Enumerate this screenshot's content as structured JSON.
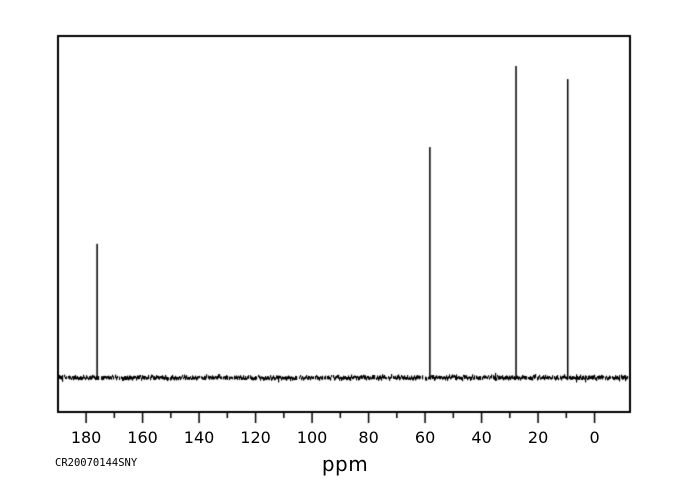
{
  "chart_data": {
    "type": "line",
    "subtype": "13C-NMR-spectrum",
    "title": "",
    "xlabel": "ppm",
    "ylabel": "",
    "xlim": [
      190.3,
      -12.9
    ],
    "x_axis_inverted": true,
    "grid": false,
    "legend": false,
    "x_major_ticks": [
      180,
      160,
      140,
      120,
      100,
      80,
      60,
      40,
      20,
      0
    ],
    "x_minor_ticks": [
      170,
      150,
      130,
      110,
      90,
      70,
      50,
      30,
      10
    ],
    "peaks": [
      {
        "ppm": 176.1,
        "rel_intensity": 0.43
      },
      {
        "ppm": 58.3,
        "rel_intensity": 0.74
      },
      {
        "ppm": 27.8,
        "rel_intensity": 1.0
      },
      {
        "ppm": 9.5,
        "rel_intensity": 0.958
      }
    ],
    "baseline_rel_intensity": 0.0,
    "noise_band_thickness_px": 3,
    "spectrum_id": "CR20070144SNY",
    "colors": {
      "line": "#000000",
      "frame": "#000000",
      "background": "#ffffff",
      "text": "#000000"
    }
  }
}
